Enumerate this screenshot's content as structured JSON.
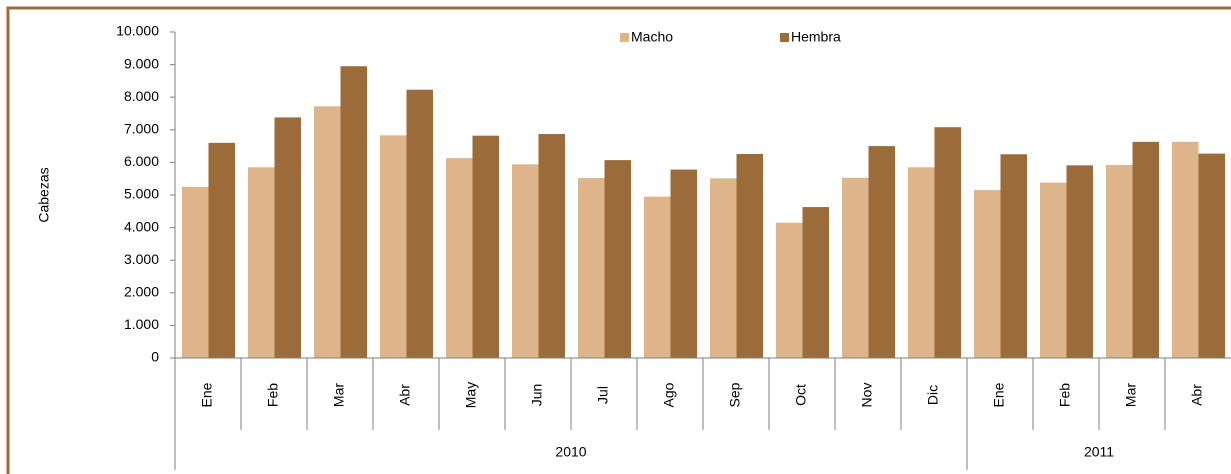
{
  "chart_data": {
    "type": "bar",
    "y_label": "Cabezas",
    "categories": [
      "Ene",
      "Feb",
      "Mar",
      "Abr",
      "May",
      "Jun",
      "Jul",
      "Ago",
      "Sep",
      "Oct",
      "Nov",
      "Dic",
      "Ene",
      "Feb",
      "Mar",
      "Abr"
    ],
    "groups": [
      {
        "label": "2010",
        "span": 12
      },
      {
        "label": "2011",
        "span": 4
      }
    ],
    "series": [
      {
        "name": "Macho",
        "color": "#deb48a",
        "values": [
          5250,
          5850,
          7720,
          6830,
          6130,
          5940,
          5520,
          4950,
          5510,
          4150,
          5530,
          5850,
          5150,
          5380,
          5920,
          6630
        ]
      },
      {
        "name": "Hembra",
        "color": "#9c6b3a",
        "values": [
          6600,
          7380,
          8950,
          8230,
          6820,
          6870,
          6070,
          5780,
          6260,
          4630,
          6500,
          7080,
          6250,
          5910,
          6630,
          6270
        ]
      }
    ],
    "ylim": [
      0,
      10000
    ],
    "yticks": [
      0,
      {
        "value": 1000,
        "label": "1.000"
      },
      {
        "value": 2000,
        "label": "2.000"
      },
      {
        "value": 3000,
        "label": "3.000"
      },
      {
        "value": 4000,
        "label": "4.000"
      },
      {
        "value": 5000,
        "label": "5.000"
      },
      {
        "value": 6000,
        "label": "6.000"
      },
      {
        "value": 7000,
        "label": "7.000"
      },
      {
        "value": 8000,
        "label": "8.000"
      },
      {
        "value": 9000,
        "label": "9.000"
      },
      {
        "value": 10000,
        "label": "10.000"
      }
    ],
    "legend": "top"
  }
}
